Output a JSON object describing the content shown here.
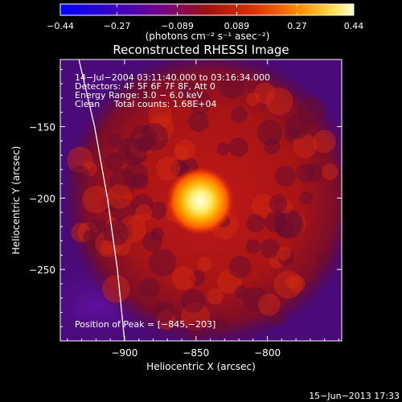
{
  "chart_data": {
    "type": "heatmap",
    "title": "Reconstructed RHESSI Image",
    "xlabel": "Heliocentric X (arcsec)",
    "ylabel": "Heliocentric Y (arcsec)",
    "xlim": [
      -945,
      -748
    ],
    "ylim": [
      -300,
      -103
    ],
    "xticks": [
      -900,
      -850,
      -800
    ],
    "xtick_labels": [
      "−900",
      "−850",
      "−800"
    ],
    "yticks": [
      -250,
      -200,
      -150
    ],
    "ytick_labels": [
      "−250",
      "−200",
      "−150"
    ],
    "colorbar": {
      "range": [
        -0.44,
        0.44
      ],
      "ticks": [
        -0.44,
        -0.27,
        -0.089,
        0.089,
        0.27,
        0.44
      ],
      "tick_labels": [
        "−0.44",
        "−0.27",
        "−0.089",
        "0.089",
        "0.27",
        "0.44"
      ],
      "units_label": "(photons cm⁻² s⁻¹ asec⁻²)"
    },
    "peak": [
      -845,
      -203
    ],
    "info_lines": [
      "14−Jul−2004 03:11:40.000 to 03:16:34.000",
      "Detectors: 4F 5F 6F 7F 8F, Att 0",
      "Energy Range: 3.0 − 6.0 keV",
      "Clean     Total counts: 1.68E+04"
    ],
    "peak_label": "Position of Peak = [−845,−203]",
    "limb_curve": [
      [
        -932,
        -103
      ],
      [
        -921,
        -150
      ],
      [
        -912,
        -200
      ],
      [
        -905,
        -250
      ],
      [
        -900,
        -300
      ]
    ]
  },
  "footer": {
    "date": "15−Jun−2013 17:33"
  }
}
